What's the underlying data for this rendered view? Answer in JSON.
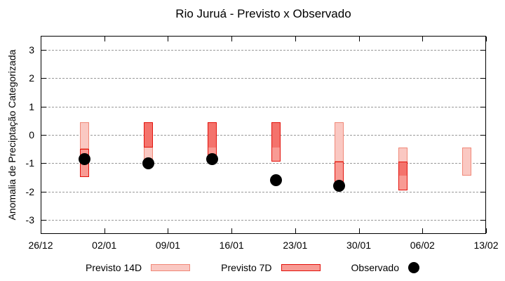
{
  "title": "Rio Juruá - Previsto x Observado",
  "colors": {
    "previsto14_fill": "#fac8c2",
    "previsto14_stroke": "#f08878",
    "previsto7_fill": "#f89b94",
    "previsto7_stroke": "#e3120b",
    "overlap_fill": "#f4736c",
    "observado": "#000000",
    "grid": "#999999",
    "axis": "#000000"
  },
  "chart_data": {
    "type": "bar",
    "subtype": "interval-forecast-ranges-with-observed-points",
    "title": "Rio Juruá - Previsto x Observado",
    "xlabel": "",
    "ylabel": "Anomalia de Preciptação Categorizada",
    "ylim": [
      -3.5,
      3.5
    ],
    "y_ticks": [
      3,
      2,
      1,
      0,
      -1,
      -2,
      -3
    ],
    "x_span_days": 49,
    "x_ticks": [
      {
        "label": "26/12",
        "day": 0
      },
      {
        "label": "02/01",
        "day": 7
      },
      {
        "label": "09/01",
        "day": 14
      },
      {
        "label": "16/01",
        "day": 21
      },
      {
        "label": "23/01",
        "day": 28
      },
      {
        "label": "30/01",
        "day": 35
      },
      {
        "label": "06/02",
        "day": 42
      },
      {
        "label": "13/02",
        "day": 49
      }
    ],
    "grid": true,
    "legend_position": "bottom",
    "series": [
      {
        "name": "Previsto 14D",
        "type": "interval",
        "intervals": [
          {
            "date": "31/12",
            "day": 4.86,
            "low": -0.5,
            "high": 0.45
          },
          {
            "date": "07/01",
            "day": 11.86,
            "low": -0.95,
            "high": 0.45
          },
          {
            "date": "14/01",
            "day": 18.86,
            "low": -0.45,
            "high": 0.45
          },
          {
            "date": "21/01",
            "day": 25.86,
            "low": -0.45,
            "high": 0.45
          },
          {
            "date": "28/01",
            "day": 32.86,
            "low": -0.95,
            "high": 0.45
          },
          {
            "date": "04/02",
            "day": 39.86,
            "low": -1.45,
            "high": -0.45
          },
          {
            "date": "11/02",
            "day": 46.86,
            "low": -1.45,
            "high": -0.45
          }
        ]
      },
      {
        "name": "Previsto 7D",
        "type": "interval",
        "intervals": [
          {
            "date": "31/12",
            "day": 4.86,
            "low": -1.5,
            "high": -0.5
          },
          {
            "date": "07/01",
            "day": 11.86,
            "low": -0.45,
            "high": 0.45
          },
          {
            "date": "14/01",
            "day": 18.86,
            "low": -0.95,
            "high": 0.45
          },
          {
            "date": "21/01",
            "day": 25.86,
            "low": -0.95,
            "high": 0.45
          },
          {
            "date": "28/01",
            "day": 32.86,
            "low": -1.7,
            "high": -0.95
          },
          {
            "date": "04/02",
            "day": 39.86,
            "low": -1.95,
            "high": -0.95
          }
        ]
      },
      {
        "name": "Observado",
        "type": "point",
        "points": [
          {
            "date": "31/12",
            "day": 4.86,
            "value": -0.85
          },
          {
            "date": "07/01",
            "day": 11.86,
            "value": -1.0
          },
          {
            "date": "14/01",
            "day": 18.86,
            "value": -0.85
          },
          {
            "date": "21/01",
            "day": 25.86,
            "value": -1.6
          },
          {
            "date": "28/01",
            "day": 32.86,
            "value": -1.8
          }
        ]
      }
    ]
  },
  "legend": {
    "items": [
      {
        "label": "Previsto 14D"
      },
      {
        "label": "Previsto 7D"
      },
      {
        "label": "Observado"
      }
    ]
  }
}
